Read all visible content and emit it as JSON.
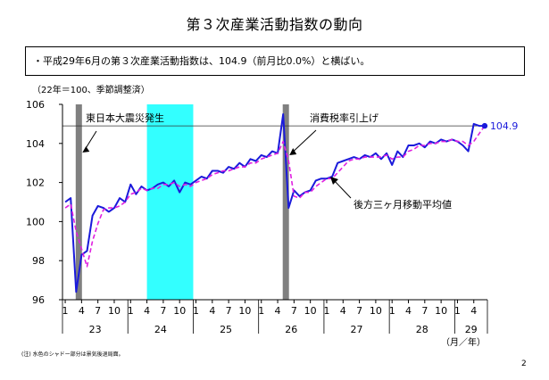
{
  "slide": {
    "title": "第３次産業活動指数の動向",
    "summary": "・平成29年6月の第３次産業活動指数は、104.9（前月比0.0%）と横ばい。",
    "footnote": "(注) 水色のシャドー部分は景気後退局面。",
    "page_number": "2"
  },
  "chart_data": {
    "type": "line",
    "title": "",
    "xlabel": "（月／年）",
    "ylabel": "（22年＝100、季節調整済）",
    "ylim": [
      96,
      106
    ],
    "yticks": [
      96,
      98,
      100,
      102,
      104,
      106
    ],
    "x_axis": {
      "month_ticks": [
        "1",
        "4",
        "7",
        "10",
        "1",
        "4",
        "7",
        "10",
        "1",
        "4",
        "7",
        "10",
        "1",
        "4",
        "7",
        "10",
        "1",
        "4",
        "7",
        "10",
        "1",
        "4",
        "7",
        "10",
        "1",
        "4"
      ],
      "year_labels": [
        "23",
        "24",
        "25",
        "26",
        "27",
        "28",
        "29"
      ],
      "month_count": 78
    },
    "series": [
      {
        "name": "",
        "color": "#1a1adb",
        "style": "solid",
        "values": [
          101.0,
          101.2,
          96.4,
          98.3,
          98.5,
          100.3,
          100.8,
          100.7,
          100.5,
          100.7,
          101.2,
          101.0,
          101.9,
          101.4,
          101.8,
          101.6,
          101.7,
          101.9,
          102.0,
          101.8,
          102.1,
          101.5,
          102.0,
          101.9,
          102.1,
          102.3,
          102.2,
          102.6,
          102.6,
          102.5,
          102.8,
          102.7,
          103.0,
          102.8,
          103.2,
          103.1,
          103.4,
          103.3,
          103.6,
          103.5,
          105.5,
          100.7,
          101.6,
          101.3,
          101.5,
          101.6,
          102.1,
          102.2,
          102.2,
          102.3,
          103.0,
          103.1,
          103.2,
          103.3,
          103.2,
          103.4,
          103.3,
          103.5,
          103.2,
          103.5,
          102.9,
          103.6,
          103.3,
          103.9,
          103.9,
          104.0,
          103.8,
          104.1,
          104.0,
          104.2,
          104.1,
          104.2,
          104.1,
          103.9,
          103.6,
          105.0,
          104.9,
          104.9
        ]
      },
      {
        "name": "",
        "color": "#e020e0",
        "style": "dashed",
        "values": [
          100.7,
          100.9,
          99.5,
          98.6,
          97.7,
          99.0,
          99.9,
          100.6,
          100.7,
          100.7,
          100.8,
          101.0,
          101.4,
          101.5,
          101.7,
          101.6,
          101.7,
          101.7,
          101.9,
          101.9,
          102.0,
          101.8,
          101.9,
          101.8,
          102.0,
          102.1,
          102.2,
          102.4,
          102.5,
          102.6,
          102.6,
          102.7,
          102.8,
          102.8,
          103.0,
          103.0,
          103.2,
          103.3,
          103.4,
          103.5,
          104.1,
          103.1,
          101.3,
          101.2,
          101.5,
          101.5,
          101.8,
          102.0,
          102.2,
          102.2,
          102.5,
          102.8,
          103.1,
          103.2,
          103.2,
          103.3,
          103.3,
          103.3,
          103.3,
          103.4,
          103.2,
          103.3,
          103.3,
          103.6,
          103.7,
          103.9,
          103.9,
          104.0,
          104.0,
          104.1,
          104.1,
          104.2,
          104.1,
          104.1,
          103.9,
          104.1,
          104.5,
          104.9
        ]
      }
    ],
    "current_value": 104.9,
    "current_value_label": "104.9",
    "recession_shade": {
      "from_index": 15,
      "to_index": 23.5,
      "color": "#33ffff"
    },
    "event_bars": [
      {
        "index": 2.5,
        "label": "東日本大震災発生",
        "color": "#808080"
      },
      {
        "index": 40.5,
        "label": "消費税率引上げ",
        "color": "#808080"
      }
    ],
    "series_annotation": "後方三ヶ月移動平均値",
    "reference_line": 104.9,
    "grid": false
  }
}
